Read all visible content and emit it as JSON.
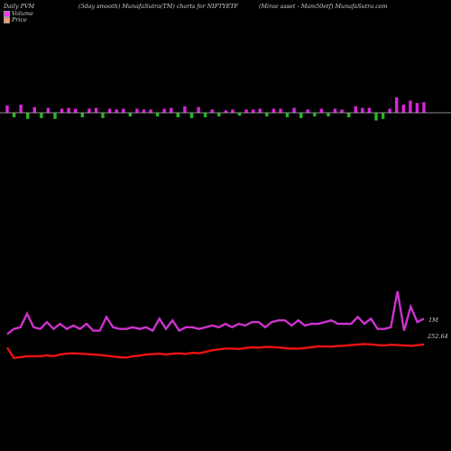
{
  "header": {
    "left": "Daily PVM",
    "center": "(5day smooth) MunafaSutra(TM) charts for NIFTYETF",
    "right": "(Mirae asset - Mam50etf) MunafaSutra.com"
  },
  "legend": [
    {
      "label": "Volume",
      "color": "#ff33ff"
    },
    {
      "label": "Price",
      "color": "#ff9966"
    }
  ],
  "colors": {
    "background": "#000000",
    "volume_up": "#dd22dd",
    "volume_down": "#22bb22",
    "volume_line": "#cc33cc",
    "price_line": "#ee1111"
  },
  "chart_data": {
    "type": "line",
    "volume_label": "1M",
    "price_label": "252.64",
    "volume_bars": [
      {
        "dir": "up",
        "size": 0.9
      },
      {
        "dir": "down",
        "size": 0.5
      },
      {
        "dir": "up",
        "size": 1.0
      },
      {
        "dir": "down",
        "size": 0.7
      },
      {
        "dir": "up",
        "size": 0.7
      },
      {
        "dir": "down",
        "size": 0.6
      },
      {
        "dir": "up",
        "size": 0.6
      },
      {
        "dir": "down",
        "size": 0.7
      },
      {
        "dir": "up",
        "size": 0.5
      },
      {
        "dir": "up",
        "size": 0.6
      },
      {
        "dir": "up",
        "size": 0.5
      },
      {
        "dir": "down",
        "size": 0.5
      },
      {
        "dir": "up",
        "size": 0.5
      },
      {
        "dir": "up",
        "size": 0.6
      },
      {
        "dir": "down",
        "size": 0.6
      },
      {
        "dir": "up",
        "size": 0.5
      },
      {
        "dir": "up",
        "size": 0.4
      },
      {
        "dir": "up",
        "size": 0.5
      },
      {
        "dir": "down",
        "size": 0.4
      },
      {
        "dir": "up",
        "size": 0.5
      },
      {
        "dir": "up",
        "size": 0.4
      },
      {
        "dir": "up",
        "size": 0.4
      },
      {
        "dir": "down",
        "size": 0.4
      },
      {
        "dir": "up",
        "size": 0.5
      },
      {
        "dir": "up",
        "size": 0.6
      },
      {
        "dir": "down",
        "size": 0.5
      },
      {
        "dir": "up",
        "size": 0.8
      },
      {
        "dir": "down",
        "size": 0.6
      },
      {
        "dir": "up",
        "size": 0.7
      },
      {
        "dir": "down",
        "size": 0.5
      },
      {
        "dir": "up",
        "size": 0.4
      },
      {
        "dir": "down",
        "size": 0.4
      },
      {
        "dir": "up",
        "size": 0.3
      },
      {
        "dir": "up",
        "size": 0.4
      },
      {
        "dir": "down",
        "size": 0.3
      },
      {
        "dir": "up",
        "size": 0.4
      },
      {
        "dir": "up",
        "size": 0.4
      },
      {
        "dir": "up",
        "size": 0.5
      },
      {
        "dir": "down",
        "size": 0.4
      },
      {
        "dir": "up",
        "size": 0.5
      },
      {
        "dir": "up",
        "size": 0.5
      },
      {
        "dir": "down",
        "size": 0.5
      },
      {
        "dir": "up",
        "size": 0.6
      },
      {
        "dir": "down",
        "size": 0.6
      },
      {
        "dir": "up",
        "size": 0.4
      },
      {
        "dir": "down",
        "size": 0.4
      },
      {
        "dir": "up",
        "size": 0.5
      },
      {
        "dir": "down",
        "size": 0.4
      },
      {
        "dir": "up",
        "size": 0.5
      },
      {
        "dir": "up",
        "size": 0.4
      },
      {
        "dir": "down",
        "size": 0.5
      },
      {
        "dir": "up",
        "size": 0.8
      },
      {
        "dir": "up",
        "size": 0.6
      },
      {
        "dir": "up",
        "size": 0.6
      },
      {
        "dir": "down",
        "size": 0.9
      },
      {
        "dir": "down",
        "size": 0.7
      },
      {
        "dir": "up",
        "size": 0.5
      },
      {
        "dir": "up",
        "size": 1.9
      },
      {
        "dir": "up",
        "size": 1.0
      },
      {
        "dir": "up",
        "size": 1.5
      },
      {
        "dir": "up",
        "size": 1.2
      },
      {
        "dir": "up",
        "size": 1.3
      }
    ],
    "volume_line": [
      4,
      7,
      8,
      16,
      8,
      7,
      11,
      7,
      10,
      7,
      9,
      7,
      10,
      6,
      6,
      14,
      8,
      7,
      7,
      8,
      7,
      8,
      6,
      13,
      7,
      12,
      6,
      8,
      8,
      7,
      8,
      9,
      8,
      10,
      8,
      10,
      9,
      11,
      11,
      8,
      11,
      12,
      12,
      9,
      12,
      9,
      10,
      10,
      11,
      12,
      10,
      10,
      10,
      14,
      10,
      13,
      7,
      7,
      8,
      29,
      6,
      20,
      11,
      13
    ],
    "price_line": [
      4,
      -2,
      -1.5,
      -1,
      -1,
      -1,
      -0.5,
      -1,
      0,
      0.5,
      0.7,
      0.5,
      0.2,
      0,
      -0.3,
      -0.7,
      -1.2,
      -1.6,
      -1.8,
      -1,
      -0.7,
      0,
      0.2,
      0.5,
      0,
      0.5,
      0.7,
      0.3,
      1.0,
      0.7,
      1.5,
      2.5,
      3.0,
      3.5,
      3.5,
      3.2,
      3.8,
      4.2,
      4.0,
      4.4,
      4.3,
      4.1,
      3.7,
      3.4,
      3.5,
      3.8,
      4.2,
      4.7,
      4.7,
      4.6,
      5.0,
      5.1,
      5.6,
      5.8,
      6.1,
      5.9,
      5.5,
      5.3,
      5.7,
      5.5,
      5.3,
      5.0,
      5.4,
      5.9
    ]
  }
}
